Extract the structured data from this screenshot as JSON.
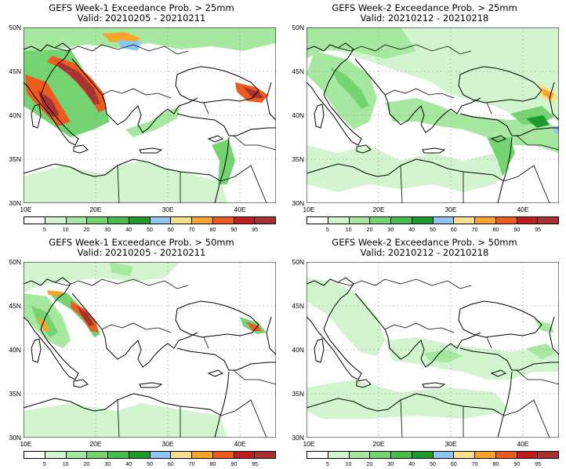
{
  "colorbar": {
    "labels": [
      "5",
      "10",
      "20",
      "30",
      "40",
      "50",
      "60",
      "70",
      "80",
      "90",
      "95"
    ],
    "colors": [
      "#ffffff",
      "#d2f5cf",
      "#a6e8a0",
      "#74d472",
      "#47bd4b",
      "#1c9b2a",
      "#8ec5f2",
      "#fae08c",
      "#f8a52d",
      "#ee5b1f",
      "#c01e1e",
      "#a83232"
    ]
  },
  "lat_labels": [
    "50N",
    "45N",
    "40N",
    "35N",
    "30N"
  ],
  "lon_labels": [
    "10E",
    "20E",
    "30E",
    "40E"
  ],
  "panels": [
    {
      "title": "GEFS Week-1 Exceedance Prob. > 25mm",
      "valid": "Valid: 20210205 - 20210211",
      "coverage": "high"
    },
    {
      "title": "GEFS Week-2 Exceedance Prob. > 25mm",
      "valid": "Valid: 20210212 - 20210218",
      "coverage": "moderate"
    },
    {
      "title": "GEFS Week-1 Exceedance Prob. > 50mm",
      "valid": "Valid: 20210205 - 20210211",
      "coverage": "medium"
    },
    {
      "title": "GEFS Week-2 Exceedance Prob. > 50mm",
      "valid": "Valid: 20210212 - 20210218",
      "coverage": "low"
    }
  ]
}
